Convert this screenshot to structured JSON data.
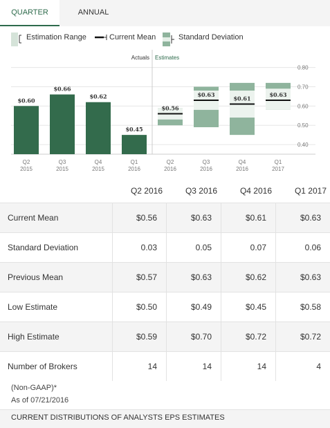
{
  "tabs": [
    {
      "label": "QUARTER",
      "active": true
    },
    {
      "label": "ANNUAL",
      "active": false
    }
  ],
  "legend": {
    "estimation_range": "Estimation Range",
    "current_mean": "Current Mean",
    "standard_deviation": "Standard Deviation"
  },
  "colors": {
    "actual_bar": "#336b4c",
    "range": "#8fb49d",
    "std_dev": "#ecf3ee",
    "accent": "#2e6b4c"
  },
  "chart_data": {
    "type": "bar",
    "section_labels": {
      "actuals": "Actuals",
      "estimates": "Estimates"
    },
    "ylim": [
      0.35,
      0.82
    ],
    "y_ticks": [
      "0.80",
      "0.70",
      "0.60",
      "0.50",
      "0.40"
    ],
    "actuals": [
      {
        "q": "Q2",
        "y": "2015",
        "value": 0.6,
        "label": "$0.60"
      },
      {
        "q": "Q3",
        "y": "2015",
        "value": 0.66,
        "label": "$0.66"
      },
      {
        "q": "Q4",
        "y": "2015",
        "value": 0.62,
        "label": "$0.62"
      },
      {
        "q": "Q1",
        "y": "2016",
        "value": 0.45,
        "label": "$0.45"
      }
    ],
    "estimates": [
      {
        "q": "Q2",
        "y": "2016",
        "mean": 0.56,
        "sd": 0.03,
        "low": 0.5,
        "high": 0.59,
        "label": "$0.56"
      },
      {
        "q": "Q3",
        "y": "2016",
        "mean": 0.63,
        "sd": 0.05,
        "low": 0.49,
        "high": 0.7,
        "label": "$0.63"
      },
      {
        "q": "Q4",
        "y": "2016",
        "mean": 0.61,
        "sd": 0.07,
        "low": 0.45,
        "high": 0.72,
        "label": "$0.61"
      },
      {
        "q": "Q1",
        "y": "2017",
        "mean": 0.63,
        "sd": 0.06,
        "low": 0.58,
        "high": 0.72,
        "label": "$0.63"
      }
    ]
  },
  "table": {
    "columns": [
      "Q2 2016",
      "Q3 2016",
      "Q4 2016",
      "Q1 2017"
    ],
    "rows": [
      {
        "label": "Current Mean",
        "values": [
          "$0.56",
          "$0.63",
          "$0.61",
          "$0.63"
        ]
      },
      {
        "label": "Standard Deviation",
        "values": [
          "0.03",
          "0.05",
          "0.07",
          "0.06"
        ]
      },
      {
        "label": "Previous Mean",
        "values": [
          "$0.57",
          "$0.63",
          "$0.62",
          "$0.63"
        ]
      },
      {
        "label": "Low Estimate",
        "values": [
          "$0.50",
          "$0.49",
          "$0.45",
          "$0.58"
        ]
      },
      {
        "label": "High Estimate",
        "values": [
          "$0.59",
          "$0.70",
          "$0.72",
          "$0.72"
        ]
      },
      {
        "label": "Number of Brokers",
        "values": [
          "14",
          "14",
          "14",
          "4"
        ]
      }
    ]
  },
  "notes": {
    "non_gaap": "(Non-GAAP)*",
    "as_of": "As of 07/21/2016"
  },
  "footer": {
    "label": "CURRENT DISTRIBUTIONS OF ANALYSTS EPS ESTIMATES"
  }
}
